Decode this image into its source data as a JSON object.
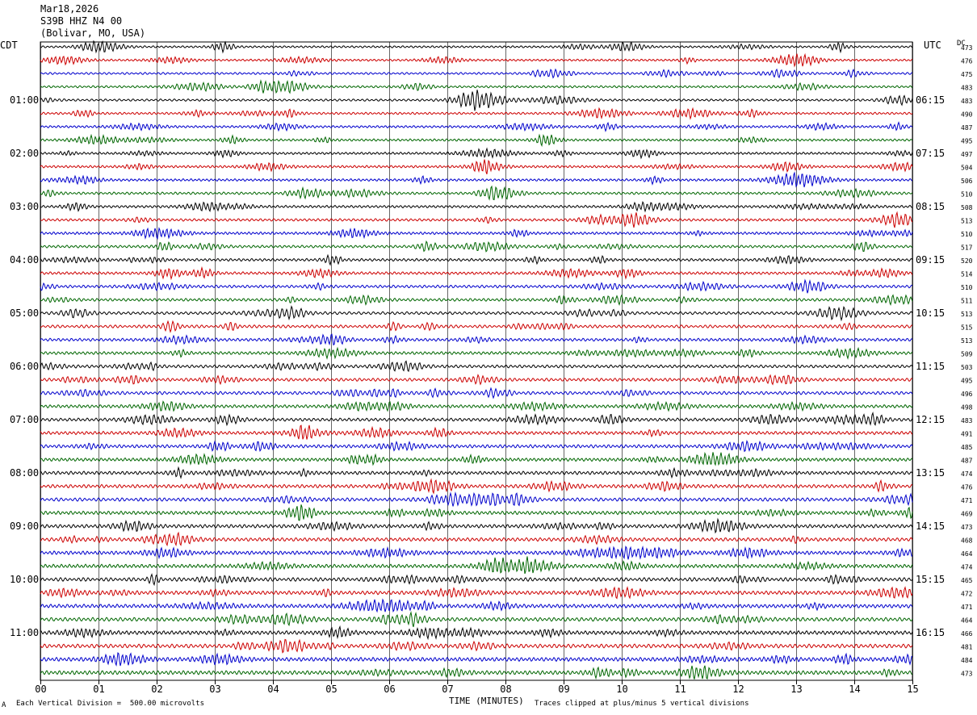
{
  "header": {
    "date": "Mar18,2026",
    "station": "S39B HHZ N4 00",
    "location": "(Bolivar, MO, USA)"
  },
  "left_tz": "CDT",
  "right_tz": "UTC",
  "dc_label": "DC",
  "footer": {
    "scale_note": "Each Vertical Division =  500.00 microvolts",
    "xlabel": "TIME (MINUTES)",
    "clip_note": "Traces clipped at plus/minus 5 vertical divisions",
    "corner_mark": "A"
  },
  "colors": {
    "trace_cycle": [
      "#000000",
      "#cc0000",
      "#0000cc",
      "#006600"
    ],
    "grid": "#000000"
  },
  "chart_data": {
    "type": "line",
    "title": "",
    "xlabel": "TIME (MINUTES)",
    "xlim": [
      0,
      15
    ],
    "x_ticks": [
      "00",
      "01",
      "02",
      "03",
      "04",
      "05",
      "06",
      "07",
      "08",
      "09",
      "10",
      "11",
      "12",
      "13",
      "14",
      "15"
    ],
    "traces_per_hour": 4,
    "minutes_per_trace": 15,
    "left_hour_labels": [
      "01:00",
      "02:00",
      "03:00",
      "04:00",
      "05:00",
      "06:00",
      "07:00",
      "08:00",
      "09:00",
      "10:00",
      "11:00"
    ],
    "right_hour_labels": [
      "06:15",
      "07:15",
      "08:15",
      "09:15",
      "10:15",
      "11:15",
      "12:15",
      "13:15",
      "14:15",
      "15:15",
      "16:15"
    ],
    "dc_offsets": [
      473,
      476,
      475,
      483,
      483,
      490,
      487,
      495,
      497,
      504,
      506,
      510,
      508,
      513,
      510,
      517,
      520,
      514,
      510,
      511,
      513,
      515,
      513,
      509,
      503,
      495,
      496,
      498,
      483,
      491,
      485,
      487,
      474,
      476,
      471,
      469,
      473,
      468,
      464,
      474,
      465,
      472,
      471,
      464,
      466,
      481,
      484,
      473
    ],
    "amplitude_divisions": 5
  }
}
